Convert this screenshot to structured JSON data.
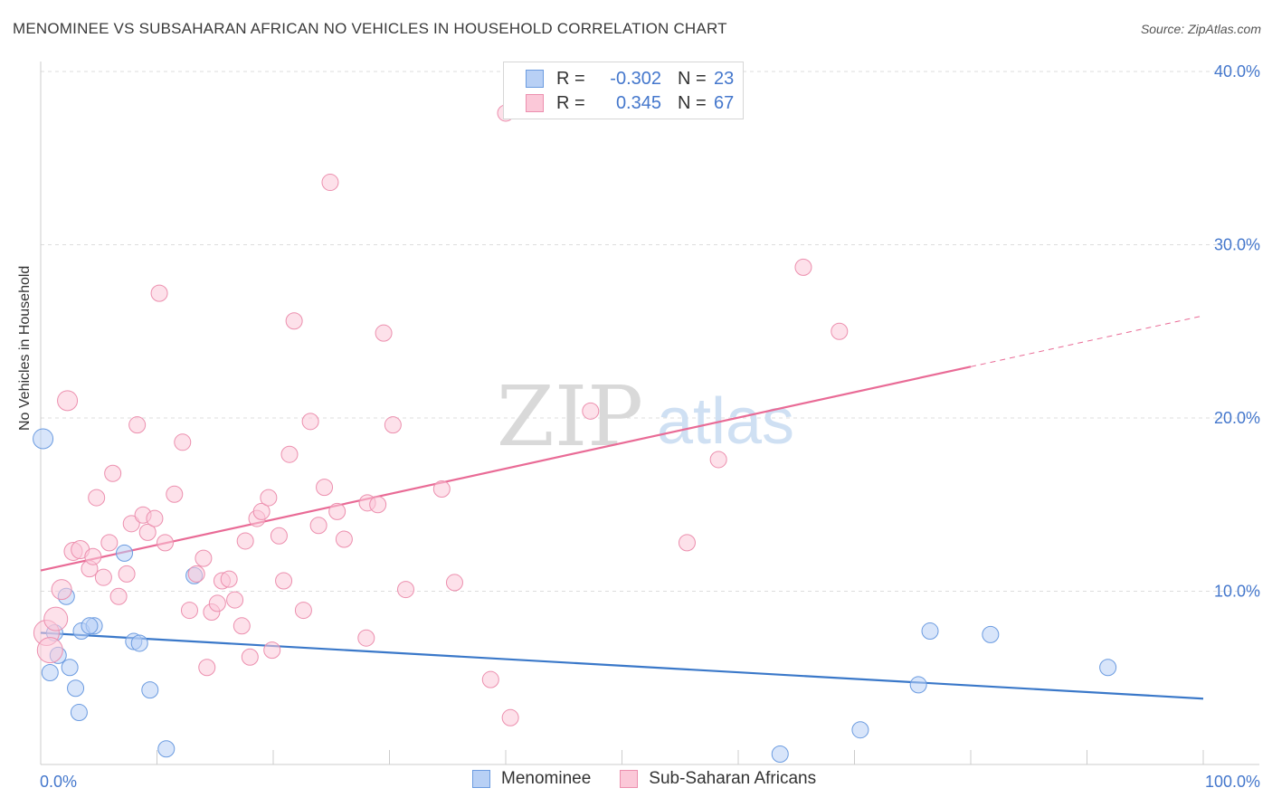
{
  "title": "MENOMINEE VS SUBSAHARAN AFRICAN NO VEHICLES IN HOUSEHOLD CORRELATION CHART",
  "source": "Source: ZipAtlas.com",
  "watermark": {
    "zip": "ZIP",
    "atlas": "atlas"
  },
  "legend": {
    "r_label": "R =",
    "n_label": "N =",
    "series": [
      {
        "name": "Menominee",
        "r": "-0.302",
        "n": "23",
        "fill": "#b8d0f5",
        "stroke": "#6b9be0"
      },
      {
        "name": "Sub-Saharan Africans",
        "r": "0.345",
        "n": "67",
        "fill": "#fbc8d8",
        "stroke": "#ec8fae"
      }
    ]
  },
  "chart_data": {
    "type": "scatter",
    "ylabel": "No Vehicles in Household",
    "x_tick_labels": [
      "0.0%",
      "100.0%"
    ],
    "y_tick_labels": [
      "10.0%",
      "20.0%",
      "30.0%",
      "40.0%"
    ],
    "xlim": [
      0,
      100
    ],
    "ylim": [
      0,
      40
    ],
    "y_ticks": [
      10,
      20,
      30,
      40
    ],
    "grid": "horizontal dashed",
    "colors": {
      "blue_line": "#3a78c9",
      "pink_line": "#e96b96",
      "grid": "#dddddd",
      "tick_text": "#4477cc"
    },
    "series": [
      {
        "name": "Menominee",
        "points": [
          [
            0.2,
            18.8,
            11
          ],
          [
            1.2,
            7.6,
            9
          ],
          [
            1.5,
            6.3,
            9
          ],
          [
            2.2,
            9.7,
            9
          ],
          [
            2.5,
            5.6,
            9
          ],
          [
            0.8,
            5.3,
            9
          ],
          [
            3.0,
            4.4,
            9
          ],
          [
            3.3,
            3.0,
            9
          ],
          [
            3.5,
            7.7,
            9
          ],
          [
            4.6,
            8.0,
            9
          ],
          [
            7.2,
            12.2,
            9
          ],
          [
            8.0,
            7.1,
            9
          ],
          [
            8.5,
            7.0,
            9
          ],
          [
            9.4,
            4.3,
            9
          ],
          [
            10.8,
            0.9,
            9
          ],
          [
            13.2,
            10.9,
            9
          ],
          [
            75.5,
            4.6,
            9
          ],
          [
            76.5,
            7.7,
            9
          ],
          [
            81.7,
            7.5,
            9
          ],
          [
            91.8,
            5.6,
            9
          ],
          [
            70.5,
            2.0,
            9
          ],
          [
            63.6,
            0.6,
            9
          ],
          [
            4.2,
            8.0,
            9
          ]
        ],
        "trend": {
          "x0": 0,
          "y0": 7.6,
          "x1": 100,
          "y1": 3.8
        }
      },
      {
        "name": "Sub-Saharan Africans",
        "points": [
          [
            0.5,
            7.6,
            14
          ],
          [
            0.8,
            6.6,
            14
          ],
          [
            1.3,
            8.4,
            13
          ],
          [
            1.8,
            10.1,
            11
          ],
          [
            2.3,
            21.0,
            11
          ],
          [
            2.8,
            12.3,
            10
          ],
          [
            3.4,
            12.4,
            10
          ],
          [
            4.2,
            11.3,
            9
          ],
          [
            4.5,
            12.0,
            9
          ],
          [
            4.8,
            15.4,
            9
          ],
          [
            5.4,
            10.8,
            9
          ],
          [
            5.9,
            12.8,
            9
          ],
          [
            6.2,
            16.8,
            9
          ],
          [
            6.7,
            9.7,
            9
          ],
          [
            7.4,
            11.0,
            9
          ],
          [
            7.8,
            13.9,
            9
          ],
          [
            8.3,
            19.6,
            9
          ],
          [
            8.8,
            14.4,
            9
          ],
          [
            9.2,
            13.4,
            9
          ],
          [
            9.8,
            14.2,
            9
          ],
          [
            10.2,
            27.2,
            9
          ],
          [
            10.7,
            12.8,
            9
          ],
          [
            11.5,
            15.6,
            9
          ],
          [
            12.2,
            18.6,
            9
          ],
          [
            12.8,
            8.9,
            9
          ],
          [
            13.4,
            11.0,
            9
          ],
          [
            14.0,
            11.9,
            9
          ],
          [
            14.3,
            5.6,
            9
          ],
          [
            14.7,
            8.8,
            9
          ],
          [
            15.2,
            9.3,
            9
          ],
          [
            15.6,
            10.6,
            9
          ],
          [
            16.2,
            10.7,
            9
          ],
          [
            16.7,
            9.5,
            9
          ],
          [
            17.3,
            8.0,
            9
          ],
          [
            17.6,
            12.9,
            9
          ],
          [
            18.0,
            6.2,
            9
          ],
          [
            18.6,
            14.2,
            9
          ],
          [
            19.0,
            14.6,
            9
          ],
          [
            19.6,
            15.4,
            9
          ],
          [
            19.9,
            6.6,
            9
          ],
          [
            20.5,
            13.2,
            9
          ],
          [
            20.9,
            10.6,
            9
          ],
          [
            21.4,
            17.9,
            9
          ],
          [
            21.8,
            25.6,
            9
          ],
          [
            22.6,
            8.9,
            9
          ],
          [
            23.2,
            19.8,
            9
          ],
          [
            23.9,
            13.8,
            9
          ],
          [
            24.4,
            16.0,
            9
          ],
          [
            24.9,
            33.6,
            9
          ],
          [
            25.5,
            14.6,
            9
          ],
          [
            26.1,
            13.0,
            9
          ],
          [
            28.0,
            7.3,
            9
          ],
          [
            28.1,
            15.1,
            9
          ],
          [
            29.0,
            15.0,
            9
          ],
          [
            29.5,
            24.9,
            9
          ],
          [
            30.3,
            19.6,
            9
          ],
          [
            31.4,
            10.1,
            9
          ],
          [
            34.5,
            15.9,
            9
          ],
          [
            35.6,
            10.5,
            9
          ],
          [
            38.7,
            4.9,
            9
          ],
          [
            40.4,
            2.7,
            9
          ],
          [
            40.0,
            37.6,
            9
          ],
          [
            47.3,
            20.4,
            9
          ],
          [
            55.6,
            12.8,
            9
          ],
          [
            58.3,
            17.6,
            9
          ],
          [
            65.6,
            28.7,
            9
          ],
          [
            68.7,
            25.0,
            9
          ]
        ],
        "trend": {
          "x0": 0,
          "y0": 11.2,
          "x1": 100,
          "y1": 25.9,
          "solid_until": 80
        }
      }
    ]
  }
}
